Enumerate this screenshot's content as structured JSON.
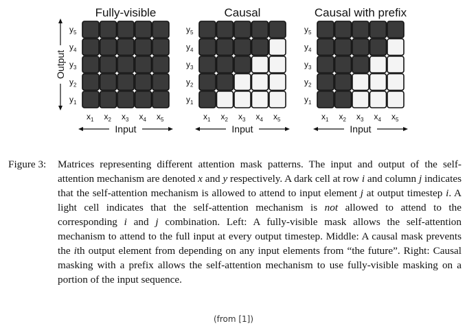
{
  "panels": [
    {
      "title": "Fully-visible",
      "visible_upto": [
        5,
        5,
        5,
        5,
        5
      ]
    },
    {
      "title": "Causal",
      "visible_upto": [
        1,
        2,
        3,
        4,
        5
      ]
    },
    {
      "title": "Causal with prefix",
      "visible_upto": [
        2,
        2,
        3,
        4,
        5
      ]
    }
  ],
  "row_labels": [
    "y5",
    "y4",
    "y3",
    "y2",
    "y1"
  ],
  "col_labels": [
    "x1",
    "x2",
    "x3",
    "x4",
    "x5"
  ],
  "y_axis_label": "Output",
  "x_axis_label": "Input",
  "caption": {
    "label": "Figure 3:",
    "parts": [
      {
        "t": "Matrices representing different attention mask patterns. The input and output of the self-attention mechanism are denoted ",
        "em": false
      },
      {
        "t": "x",
        "em": true
      },
      {
        "t": " and ",
        "em": false
      },
      {
        "t": "y",
        "em": true
      },
      {
        "t": " respectively. A dark cell at row ",
        "em": false
      },
      {
        "t": "i",
        "em": true
      },
      {
        "t": " and column ",
        "em": false
      },
      {
        "t": "j",
        "em": true
      },
      {
        "t": " indicates that the self-attention mechanism is allowed to attend to input element ",
        "em": false
      },
      {
        "t": "j",
        "em": true
      },
      {
        "t": " at output timestep ",
        "em": false
      },
      {
        "t": "i",
        "em": true
      },
      {
        "t": ". A light cell indicates that the self-attention mechanism is ",
        "em": false
      },
      {
        "t": "not",
        "em": true
      },
      {
        "t": " allowed to attend to the corresponding ",
        "em": false
      },
      {
        "t": "i",
        "em": true
      },
      {
        "t": " and ",
        "em": false
      },
      {
        "t": "j",
        "em": true
      },
      {
        "t": " combination. Left: A fully-visible mask allows the self-attention mechanism to attend to the full input at every output timestep. Middle: A causal mask prevents the ",
        "em": false
      },
      {
        "t": "i",
        "em": true
      },
      {
        "t": "th output element from depending on any input elements from “the future”. Right: Causal masking with a prefix allows the self-attention mechanism to use fully-visible masking on a portion of the input sequence.",
        "em": false
      }
    ]
  },
  "footer": "(from [1])"
}
